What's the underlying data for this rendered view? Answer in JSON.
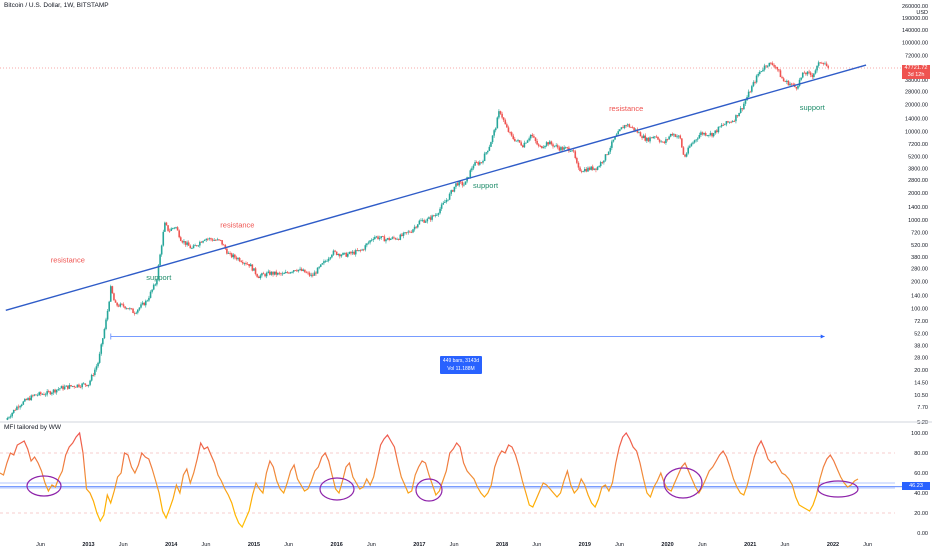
{
  "header": {
    "title": "Bitcoin / U.S. Dollar, 1W, BITSTAMP",
    "currency": "USD"
  },
  "mfi_panel": {
    "title": "MFI tailored by WW",
    "current_value": "46.23"
  },
  "price_tag": {
    "line1": "47721.72",
    "line2": "3d 12h"
  },
  "measure": {
    "line1": "449 bars, 3143d",
    "line2": "Vol 11.188M"
  },
  "colors": {
    "up_candle": "#26a69a",
    "down_candle": "#ef5350",
    "trendline": "#2f5cc8",
    "mfi_low": "#ffb000",
    "mfi_high": "#ef5350",
    "annotation_support": "#1e8c6a",
    "annotation_resistance": "#ef5350",
    "circle": "#8e24aa"
  },
  "chart_data": [
    {
      "type": "candlestick",
      "title": "Bitcoin / U.S. Dollar, 1W, BITSTAMP",
      "y_scale": "log",
      "ylim": [
        5.2,
        260000
      ],
      "y_ticks": [
        "260000.00",
        "190000.00",
        "140000.00",
        "100000.00",
        "72000.00",
        "52000.00",
        "38000.00",
        "28000.00",
        "20000.00",
        "14000.00",
        "10000.00",
        "7200.00",
        "5200.00",
        "3800.00",
        "2800.00",
        "2000.00",
        "1400.00",
        "1000.00",
        "720.00",
        "520.00",
        "380.00",
        "280.00",
        "200.00",
        "140.00",
        "100.00",
        "72.00",
        "52.00",
        "38.00",
        "28.00",
        "20.00",
        "14.50",
        "10.50",
        "7.70",
        "5.20"
      ],
      "x_ticks": [
        {
          "label": "Jun",
          "t": 2012.42
        },
        {
          "label": "2013",
          "t": 2013.0
        },
        {
          "label": "Jun",
          "t": 2013.42
        },
        {
          "label": "2014",
          "t": 2014.0
        },
        {
          "label": "Jun",
          "t": 2014.42
        },
        {
          "label": "2015",
          "t": 2015.0
        },
        {
          "label": "Jun",
          "t": 2015.42
        },
        {
          "label": "2016",
          "t": 2016.0
        },
        {
          "label": "Jun",
          "t": 2016.42
        },
        {
          "label": "2017",
          "t": 2017.0
        },
        {
          "label": "Jun",
          "t": 2017.42
        },
        {
          "label": "2018",
          "t": 2018.0
        },
        {
          "label": "Jun",
          "t": 2018.42
        },
        {
          "label": "2019",
          "t": 2019.0
        },
        {
          "label": "Jun",
          "t": 2019.42
        },
        {
          "label": "2020",
          "t": 2020.0
        },
        {
          "label": "Jun",
          "t": 2020.42
        },
        {
          "label": "2021",
          "t": 2021.0
        },
        {
          "label": "Jun",
          "t": 2021.42
        },
        {
          "label": "2022",
          "t": 2022.0
        },
        {
          "label": "Jun",
          "t": 2022.42
        }
      ],
      "price_path": [
        [
          2012.0,
          5.5
        ],
        [
          2012.15,
          8
        ],
        [
          2012.35,
          10.5
        ],
        [
          2012.5,
          11
        ],
        [
          2012.65,
          12.5
        ],
        [
          2012.85,
          13.5
        ],
        [
          2013.0,
          14
        ],
        [
          2013.12,
          25
        ],
        [
          2013.22,
          80
        ],
        [
          2013.27,
          170
        ],
        [
          2013.32,
          110
        ],
        [
          2013.45,
          105
        ],
        [
          2013.55,
          90
        ],
        [
          2013.7,
          120
        ],
        [
          2013.82,
          200
        ],
        [
          2013.88,
          500
        ],
        [
          2013.92,
          900
        ],
        [
          2013.97,
          750
        ],
        [
          2014.05,
          850
        ],
        [
          2014.12,
          600
        ],
        [
          2014.25,
          470
        ],
        [
          2014.4,
          620
        ],
        [
          2014.5,
          600
        ],
        [
          2014.6,
          570
        ],
        [
          2014.7,
          400
        ],
        [
          2014.8,
          370
        ],
        [
          2014.95,
          310
        ],
        [
          2015.05,
          230
        ],
        [
          2015.2,
          250
        ],
        [
          2015.35,
          240
        ],
        [
          2015.5,
          280
        ],
        [
          2015.6,
          260
        ],
        [
          2015.7,
          230
        ],
        [
          2015.85,
          330
        ],
        [
          2015.95,
          430
        ],
        [
          2016.1,
          400
        ],
        [
          2016.3,
          450
        ],
        [
          2016.45,
          650
        ],
        [
          2016.6,
          600
        ],
        [
          2016.75,
          630
        ],
        [
          2016.9,
          750
        ],
        [
          2017.0,
          960
        ],
        [
          2017.1,
          1000
        ],
        [
          2017.2,
          1150
        ],
        [
          2017.35,
          1800
        ],
        [
          2017.45,
          2600
        ],
        [
          2017.55,
          2500
        ],
        [
          2017.65,
          4200
        ],
        [
          2017.75,
          4500
        ],
        [
          2017.85,
          7000
        ],
        [
          2017.92,
          11000
        ],
        [
          2017.97,
          17500
        ],
        [
          2018.05,
          11000
        ],
        [
          2018.12,
          8500
        ],
        [
          2018.25,
          7000
        ],
        [
          2018.35,
          9200
        ],
        [
          2018.45,
          6500
        ],
        [
          2018.55,
          7500
        ],
        [
          2018.7,
          6400
        ],
        [
          2018.85,
          6300
        ],
        [
          2018.92,
          3700
        ],
        [
          2019.0,
          3700
        ],
        [
          2019.15,
          3900
        ],
        [
          2019.25,
          5200
        ],
        [
          2019.35,
          8000
        ],
        [
          2019.45,
          11000
        ],
        [
          2019.5,
          12000
        ],
        [
          2019.6,
          10500
        ],
        [
          2019.75,
          8000
        ],
        [
          2019.85,
          9000
        ],
        [
          2019.95,
          7200
        ],
        [
          2020.05,
          9500
        ],
        [
          2020.15,
          8500
        ],
        [
          2020.2,
          5000
        ],
        [
          2020.28,
          7000
        ],
        [
          2020.4,
          9500
        ],
        [
          2020.55,
          9300
        ],
        [
          2020.65,
          11500
        ],
        [
          2020.8,
          13500
        ],
        [
          2020.9,
          18500
        ],
        [
          2021.0,
          29000
        ],
        [
          2021.1,
          45000
        ],
        [
          2021.2,
          58000
        ],
        [
          2021.3,
          56000
        ],
        [
          2021.4,
          37000
        ],
        [
          2021.5,
          34000
        ],
        [
          2021.55,
          31000
        ],
        [
          2021.65,
          46000
        ],
        [
          2021.75,
          43000
        ],
        [
          2021.85,
          62000
        ],
        [
          2021.9,
          60000
        ],
        [
          2021.95,
          48000
        ]
      ],
      "trendline": {
        "t1": 2012.0,
        "p1": 95,
        "t2": 2022.4,
        "p2": 56000
      },
      "annotations": [
        {
          "text": "resistance",
          "kind": "resistance",
          "t": 2012.75,
          "p": 330
        },
        {
          "text": "support",
          "kind": "support",
          "t": 2013.85,
          "p": 210
        },
        {
          "text": "resistance",
          "kind": "resistance",
          "t": 2014.8,
          "p": 820
        },
        {
          "text": "support",
          "kind": "support",
          "t": 2017.8,
          "p": 2300
        },
        {
          "text": "resistance",
          "kind": "resistance",
          "t": 2019.5,
          "p": 17000
        },
        {
          "text": "support",
          "kind": "support",
          "t": 2021.75,
          "p": 17500
        }
      ],
      "measure_range": {
        "t1": 2013.27,
        "t2": 2021.9,
        "p": 48
      }
    },
    {
      "type": "line",
      "title": "MFI tailored by WW",
      "ylim": [
        0,
        100
      ],
      "y_ticks": [
        "100.00",
        "80.00",
        "60.00",
        "40.00",
        "20.00",
        "0.00"
      ],
      "levels": [
        80,
        50,
        45,
        20
      ],
      "highlight_level": 46.23,
      "series": [
        {
          "values": [
            60,
            58,
            70,
            80,
            78,
            88,
            90,
            92,
            84,
            72,
            76,
            70,
            62,
            50,
            42,
            48,
            46,
            55,
            62,
            78,
            86,
            90,
            96,
            100,
            80,
            44,
            40,
            32,
            20,
            12,
            18,
            38,
            30,
            42,
            56,
            60,
            80,
            78,
            66,
            60,
            68,
            80,
            76,
            74,
            64,
            52,
            40,
            22,
            15,
            24,
            34,
            48,
            40,
            58,
            64,
            50,
            60,
            74,
            90,
            84,
            86,
            78,
            70,
            58,
            52,
            44,
            38,
            30,
            18,
            10,
            6,
            14,
            22,
            38,
            50,
            44,
            40,
            60,
            72,
            66,
            52,
            44,
            40,
            50,
            62,
            68,
            54,
            48,
            42,
            44,
            52,
            62,
            66,
            76,
            80,
            72,
            58,
            44,
            40,
            52,
            66,
            70,
            56,
            50,
            44,
            46,
            54,
            48,
            56,
            72,
            88,
            94,
            98,
            92,
            86,
            70,
            56,
            48,
            40,
            42,
            58,
            66,
            72,
            70,
            58,
            48,
            38,
            42,
            52,
            62,
            80,
            84,
            90,
            86,
            70,
            62,
            58,
            54,
            46,
            40,
            36,
            40,
            48,
            66,
            76,
            82,
            80,
            88,
            86,
            78,
            66,
            52,
            40,
            28,
            26,
            34,
            42,
            50,
            48,
            44,
            40,
            36,
            40,
            52,
            62,
            48,
            40,
            44,
            54,
            48,
            38,
            30,
            26,
            34,
            46,
            48,
            42,
            50,
            70,
            86,
            96,
            100,
            94,
            86,
            82,
            70,
            54,
            40,
            36,
            46,
            52,
            60,
            50,
            44,
            42,
            50,
            58,
            66,
            70,
            62,
            54,
            46,
            40,
            46,
            54,
            62,
            66,
            72,
            78,
            82,
            76,
            66,
            54,
            46,
            40,
            38,
            48,
            62,
            76,
            86,
            92,
            84,
            74,
            70,
            72,
            66,
            60,
            58,
            54,
            48,
            36,
            28,
            26,
            24,
            22,
            28,
            38,
            54,
            66,
            74,
            78,
            72,
            64,
            56,
            50,
            46,
            48,
            52,
            54
          ]
        }
      ]
    }
  ]
}
